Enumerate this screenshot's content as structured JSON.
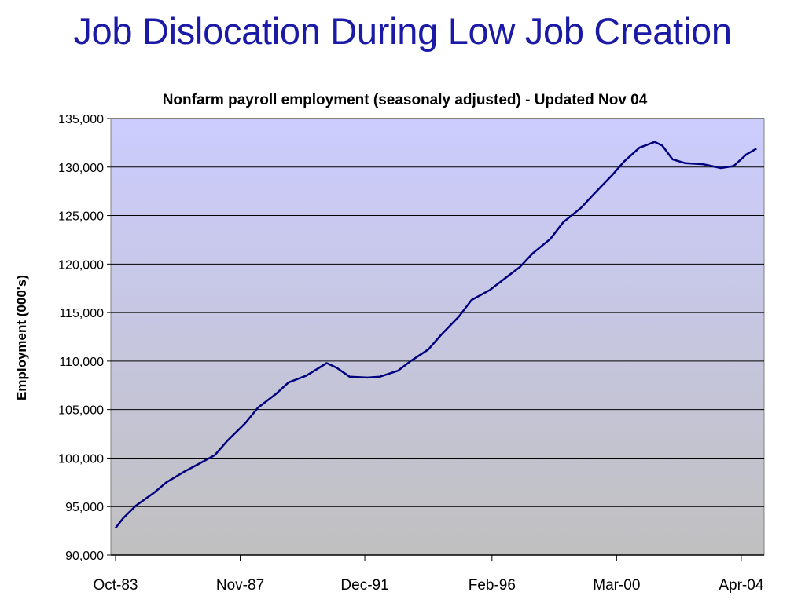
{
  "slide": {
    "title": "Job Dislocation During Low Job Creation"
  },
  "chart_data": {
    "type": "line",
    "title": "Nonfarm payroll employment (seasonaly adjusted) - Updated Nov 04",
    "xlabel": "",
    "ylabel": "Employment (000's)",
    "ylim": [
      90000,
      135000
    ],
    "yticks": [
      "90,000",
      "95,000",
      "100,000",
      "105,000",
      "110,000",
      "115,000",
      "120,000",
      "125,000",
      "130,000",
      "135,000"
    ],
    "xticks": [
      "Oct-83",
      "Nov-87",
      "Dec-91",
      "Feb-96",
      "Mar-00",
      "Apr-04"
    ],
    "grid": true,
    "legend": "none",
    "colors": {
      "line": "#00007f",
      "plot_top": "#ccccff",
      "plot_bottom": "#c0c0c0",
      "gridline": "#000000"
    },
    "series": [
      {
        "x": [
          "1983-10",
          "1984-01",
          "1984-06",
          "1985-01",
          "1985-06",
          "1986-01",
          "1986-06",
          "1987-01",
          "1987-06",
          "1988-01",
          "1988-06",
          "1989-01",
          "1989-06",
          "1990-01",
          "1990-06",
          "1990-09",
          "1991-01",
          "1991-06",
          "1992-01",
          "1992-06",
          "1993-01",
          "1993-06",
          "1994-01",
          "1994-06",
          "1995-01",
          "1995-06",
          "1996-01",
          "1996-06",
          "1997-01",
          "1997-06",
          "1998-01",
          "1998-06",
          "1999-01",
          "1999-06",
          "2000-01",
          "2000-06",
          "2000-12",
          "2001-03",
          "2001-06",
          "2001-09",
          "2002-01",
          "2002-06",
          "2003-01",
          "2003-08",
          "2004-01",
          "2004-06",
          "2004-10"
        ],
        "y": [
          92800,
          93800,
          95100,
          96400,
          97500,
          98600,
          99300,
          100300,
          101800,
          103600,
          105200,
          106600,
          107800,
          108500,
          109300,
          109800,
          109300,
          108400,
          108300,
          108400,
          109000,
          110000,
          111200,
          112700,
          114600,
          116300,
          117300,
          118300,
          119700,
          121100,
          122600,
          124300,
          125800,
          127200,
          129100,
          130600,
          132000,
          132300,
          132600,
          132200,
          130800,
          130400,
          130300,
          129900,
          130100,
          131300,
          131900
        ]
      }
    ]
  }
}
